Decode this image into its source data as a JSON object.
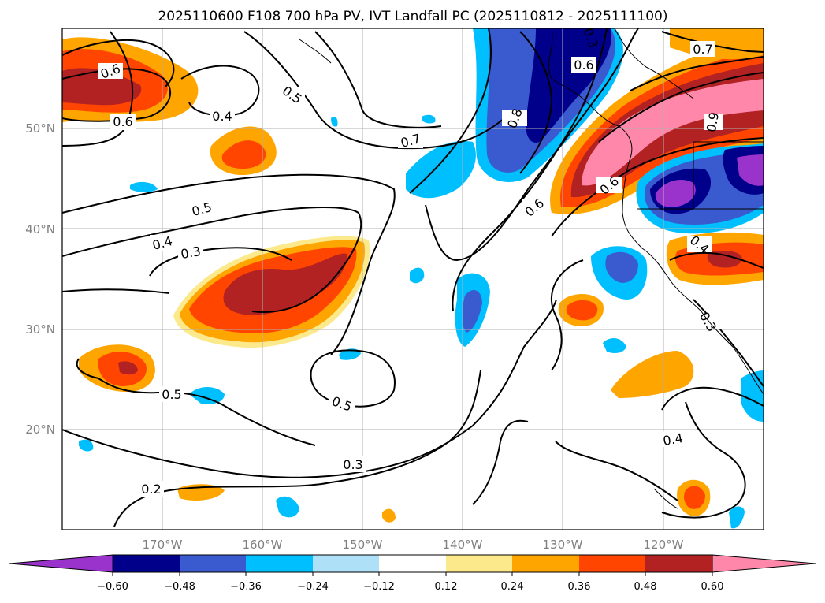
{
  "title": "2025110600 F108 700 hPa PV, IVT Landfall PC (2025110812 - 2025111100)",
  "chart_data": {
    "type": "map",
    "title": "2025110600 F108 700 hPa PV, IVT Landfall PC (2025110812 - 2025111100)",
    "lon_ticks": [
      "170°W",
      "160°W",
      "150°W",
      "140°W",
      "130°W",
      "120°W"
    ],
    "lat_ticks": [
      "50°N",
      "40°N",
      "30°N",
      "20°N"
    ],
    "colorbar": {
      "ticks": [
        "−0.60",
        "−0.48",
        "−0.36",
        "−0.24",
        "−0.12",
        "0.12",
        "0.24",
        "0.36",
        "0.48",
        "0.60"
      ],
      "colors": [
        "#9933cc",
        "#00008b",
        "#3a5bd0",
        "#00bfff",
        "#aee0f7",
        "#ffffff",
        "#fce98c",
        "#ffa500",
        "#ff4500",
        "#b22222",
        "#ff88aa"
      ]
    },
    "contour_labels": [
      "0.6",
      "0.6",
      "0.5",
      "0.4",
      "0.7",
      "0.8",
      "0.6",
      "0.6",
      "0.7",
      "0.5",
      "0.4",
      "0.3",
      "0.3",
      "0.6",
      "0.5",
      "0.5",
      "0.3",
      "0.2",
      "0.4",
      "0.9",
      "0.4",
      "0.3"
    ]
  }
}
